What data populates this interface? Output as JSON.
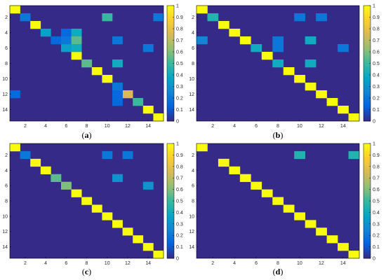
{
  "colors": {
    "scale": [
      "#352a87",
      "#0363e1",
      "#1485d4",
      "#06a7c6",
      "#38b99e",
      "#92bf73",
      "#d9ba56",
      "#fcce2e",
      "#f9fb0e"
    ],
    "frame": "#000000"
  },
  "chart_data": [
    {
      "type": "heatmap",
      "label": "(a)",
      "size": 15,
      "x_ticks": [
        2,
        4,
        6,
        8,
        10,
        12,
        14
      ],
      "y_ticks": [
        2,
        4,
        6,
        8,
        10,
        12,
        14
      ],
      "colorbar_ticks": [
        "0",
        "0.1",
        "0.2",
        "0.3",
        "0.4",
        "0.5",
        "0.6",
        "0.7",
        "0.8",
        "0.9",
        "1"
      ],
      "clim": [
        0,
        1
      ],
      "diagonal": 1,
      "cells": [
        {
          "row": 2,
          "col": 2,
          "v": 0.2
        },
        {
          "row": 2,
          "col": 10,
          "v": 0.5
        },
        {
          "row": 2,
          "col": 15,
          "v": 0.2
        },
        {
          "row": 4,
          "col": 4,
          "v": 0.35
        },
        {
          "row": 4,
          "col": 6,
          "v": 0.15
        },
        {
          "row": 4,
          "col": 7,
          "v": 0.4
        },
        {
          "row": 5,
          "col": 5,
          "v": 0.15
        },
        {
          "row": 5,
          "col": 6,
          "v": 0.2
        },
        {
          "row": 5,
          "col": 7,
          "v": 0.55
        },
        {
          "row": 5,
          "col": 11,
          "v": 0.2
        },
        {
          "row": 6,
          "col": 6,
          "v": 0.35
        },
        {
          "row": 6,
          "col": 7,
          "v": 0.4
        },
        {
          "row": 6,
          "col": 14,
          "v": 0.2
        },
        {
          "row": 8,
          "col": 8,
          "v": 0.55
        },
        {
          "row": 8,
          "col": 11,
          "v": 0.4
        },
        {
          "row": 11,
          "col": 11,
          "v": 0.2
        },
        {
          "row": 12,
          "col": 1,
          "v": 0.15
        },
        {
          "row": 12,
          "col": 11,
          "v": 0.15
        },
        {
          "row": 12,
          "col": 12,
          "v": 0.75
        },
        {
          "row": 13,
          "col": 11,
          "v": 0.15
        },
        {
          "row": 13,
          "col": 13,
          "v": 0.5
        }
      ]
    },
    {
      "type": "heatmap",
      "label": "(b)",
      "size": 15,
      "x_ticks": [
        2,
        4,
        6,
        8,
        10,
        12,
        14
      ],
      "y_ticks": [
        2,
        4,
        6,
        8,
        10,
        12,
        14
      ],
      "colorbar_ticks": [
        "0",
        "0.1",
        "0.2",
        "0.3",
        "0.4",
        "0.5",
        "0.6",
        "0.7",
        "0.8",
        "0.9",
        "1"
      ],
      "clim": [
        0,
        1
      ],
      "diagonal": 1,
      "cells": [
        {
          "row": 2,
          "col": 2,
          "v": 0.45
        },
        {
          "row": 2,
          "col": 10,
          "v": 0.2
        },
        {
          "row": 2,
          "col": 12,
          "v": 0.2
        },
        {
          "row": 5,
          "col": 1,
          "v": 0.25
        },
        {
          "row": 5,
          "col": 8,
          "v": 0.2
        },
        {
          "row": 5,
          "col": 11,
          "v": 0.4
        },
        {
          "row": 6,
          "col": 6,
          "v": 0.4
        },
        {
          "row": 6,
          "col": 8,
          "v": 0.2
        },
        {
          "row": 6,
          "col": 14,
          "v": 0.2
        },
        {
          "row": 8,
          "col": 8,
          "v": 0.4
        },
        {
          "row": 8,
          "col": 11,
          "v": 0.4
        }
      ]
    },
    {
      "type": "heatmap",
      "label": "(c)",
      "size": 15,
      "x_ticks": [
        2,
        4,
        6,
        8,
        10,
        12,
        14
      ],
      "y_ticks": [
        2,
        4,
        6,
        8,
        10,
        12,
        14
      ],
      "colorbar_ticks": [
        "0",
        "0.1",
        "0.2",
        "0.3",
        "0.4",
        "0.5",
        "0.6",
        "0.7",
        "0.8",
        "0.9",
        "1"
      ],
      "clim": [
        0,
        1
      ],
      "diagonal": 1,
      "cells": [
        {
          "row": 2,
          "col": 2,
          "v": 0.2
        },
        {
          "row": 2,
          "col": 10,
          "v": 0.2
        },
        {
          "row": 2,
          "col": 12,
          "v": 0.2
        },
        {
          "row": 5,
          "col": 5,
          "v": 0.55
        },
        {
          "row": 5,
          "col": 11,
          "v": 0.3
        },
        {
          "row": 6,
          "col": 6,
          "v": 0.6
        },
        {
          "row": 6,
          "col": 14,
          "v": 0.3
        }
      ]
    },
    {
      "type": "heatmap",
      "label": "(d)",
      "size": 15,
      "x_ticks": [
        2,
        4,
        6,
        8,
        10,
        12,
        14
      ],
      "y_ticks": [
        2,
        4,
        6,
        8,
        10,
        12,
        14
      ],
      "colorbar_ticks": [
        "0",
        "0.1",
        "0.2",
        "0.3",
        "0.4",
        "0.5",
        "0.6",
        "0.7",
        "0.8",
        "0.9",
        "1"
      ],
      "clim": [
        0,
        1
      ],
      "diagonal": 1,
      "cells": [
        {
          "row": 2,
          "col": 2,
          "v": 0
        },
        {
          "row": 2,
          "col": 10,
          "v": 0.45
        },
        {
          "row": 2,
          "col": 15,
          "v": 0.45
        }
      ]
    }
  ]
}
